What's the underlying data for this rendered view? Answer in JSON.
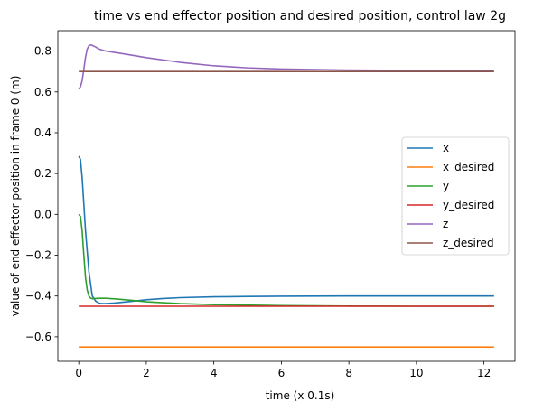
{
  "chart_data": {
    "type": "line",
    "title": "time vs end effector position and desired position, control law 2g",
    "xlabel": "time (x 0.1s)",
    "ylabel": "value of end effector position in frame 0 (m)",
    "xlim": [
      -0.62,
      12.92
    ],
    "ylim": [
      -0.72,
      0.9
    ],
    "xticks": [
      0,
      2,
      4,
      6,
      8,
      10,
      12
    ],
    "yticks": [
      -0.6,
      -0.4,
      -0.2,
      0.0,
      0.2,
      0.4,
      0.6,
      0.8
    ],
    "xtick_labels": [
      "0",
      "2",
      "4",
      "6",
      "8",
      "10",
      "12"
    ],
    "ytick_labels": [
      "−0.6",
      "−0.4",
      "−0.2",
      "0.0",
      "0.2",
      "0.4",
      "0.6",
      "0.8"
    ],
    "grid": false,
    "legend_position": "center-right",
    "series": [
      {
        "name": "x",
        "color": "#1f77b4",
        "x": [
          0,
          0.05,
          0.1,
          0.15,
          0.2,
          0.3,
          0.4,
          0.5,
          0.6,
          0.7,
          0.8,
          1.0,
          1.2,
          1.5,
          2.0,
          2.5,
          3.0,
          4.0,
          5.0,
          6.0,
          8.0,
          10.0,
          12.3
        ],
        "y": [
          0.285,
          0.27,
          0.18,
          0.05,
          -0.08,
          -0.28,
          -0.4,
          -0.425,
          -0.435,
          -0.437,
          -0.437,
          -0.435,
          -0.432,
          -0.427,
          -0.418,
          -0.412,
          -0.408,
          -0.404,
          -0.402,
          -0.401,
          -0.4,
          -0.4,
          -0.4
        ]
      },
      {
        "name": "x_desired",
        "color": "#ff7f0e",
        "x": [
          0,
          12.3
        ],
        "y": [
          -0.65,
          -0.65
        ]
      },
      {
        "name": "y",
        "color": "#2ca02c",
        "x": [
          0,
          0.05,
          0.1,
          0.15,
          0.2,
          0.25,
          0.3,
          0.35,
          0.4,
          0.5,
          0.6,
          0.8,
          1.0,
          1.5,
          2.0,
          3.0,
          4.0,
          6.0,
          8.0,
          10.0,
          12.3
        ],
        "y": [
          0.0,
          -0.01,
          -0.08,
          -0.2,
          -0.31,
          -0.37,
          -0.4,
          -0.41,
          -0.413,
          -0.412,
          -0.411,
          -0.411,
          -0.413,
          -0.42,
          -0.428,
          -0.437,
          -0.442,
          -0.447,
          -0.449,
          -0.45,
          -0.45
        ]
      },
      {
        "name": "y_desired",
        "color": "#d62728",
        "x": [
          0,
          12.3
        ],
        "y": [
          -0.45,
          -0.45
        ]
      },
      {
        "name": "z",
        "color": "#9467bd",
        "x": [
          0,
          0.05,
          0.1,
          0.15,
          0.2,
          0.25,
          0.3,
          0.35,
          0.4,
          0.5,
          0.6,
          0.8,
          1.0,
          1.5,
          2.0,
          3.0,
          4.0,
          5.0,
          6.0,
          8.0,
          10.0,
          12.3
        ],
        "y": [
          0.615,
          0.625,
          0.655,
          0.71,
          0.77,
          0.81,
          0.826,
          0.83,
          0.828,
          0.82,
          0.81,
          0.8,
          0.795,
          0.782,
          0.768,
          0.745,
          0.728,
          0.718,
          0.712,
          0.707,
          0.705,
          0.705
        ]
      },
      {
        "name": "z_desired",
        "color": "#8c564b",
        "x": [
          0,
          12.3
        ],
        "y": [
          0.7,
          0.7
        ]
      }
    ]
  }
}
